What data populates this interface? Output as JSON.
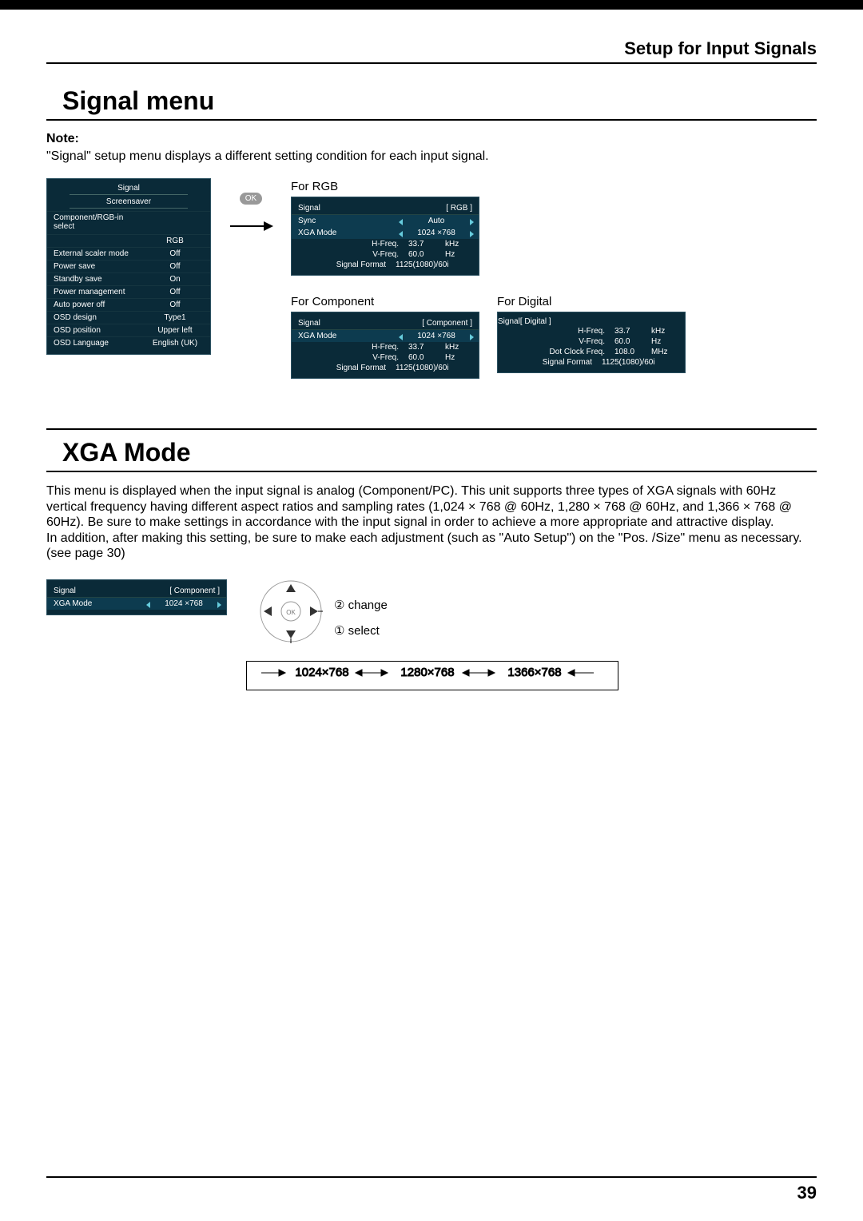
{
  "header": {
    "section": "Setup for Input Signals"
  },
  "title1": "Signal menu",
  "note": {
    "label": "Note:",
    "text": "\"Signal\" setup menu displays a different setting condition for each input signal."
  },
  "mainPanel": {
    "title": "Signal",
    "sub": "Screensaver",
    "rows": [
      {
        "lab": "Component/RGB-in select",
        "val": ""
      },
      {
        "lab": "",
        "val": "RGB"
      },
      {
        "lab": "External scaler mode",
        "val": "Off"
      },
      {
        "lab": "Power save",
        "val": "Off"
      },
      {
        "lab": "Standby save",
        "val": "On"
      },
      {
        "lab": "Power management",
        "val": "Off"
      },
      {
        "lab": "Auto power off",
        "val": "Off"
      },
      {
        "lab": "OSD design",
        "val": "Type1"
      },
      {
        "lab": "OSD position",
        "val": "Upper left"
      },
      {
        "lab": "OSD Language",
        "val": "English (UK)"
      }
    ]
  },
  "ok": "OK",
  "rgb": {
    "caption": "For RGB",
    "head": "Signal",
    "tag": "[ RGB ]",
    "sel": [
      {
        "lab": "Sync",
        "val": "Auto"
      },
      {
        "lab": "XGA Mode",
        "val": "1024 ×768"
      }
    ],
    "info": [
      {
        "k": "H-Freq.",
        "v": "33.7",
        "u": "kHz"
      },
      {
        "k": "V-Freq.",
        "v": "60.0",
        "u": "Hz"
      },
      {
        "k": "Signal Format",
        "v": "1125(1080)/60i",
        "u": ""
      }
    ]
  },
  "component": {
    "caption": "For Component",
    "head": "Signal",
    "tag": "[ Component ]",
    "sel": [
      {
        "lab": "XGA Mode",
        "val": "1024 ×768"
      }
    ],
    "info": [
      {
        "k": "H-Freq.",
        "v": "33.7",
        "u": "kHz"
      },
      {
        "k": "V-Freq.",
        "v": "60.0",
        "u": "Hz"
      },
      {
        "k": "Signal Format",
        "v": "1125(1080)/60i",
        "u": ""
      }
    ]
  },
  "digital": {
    "caption": "For Digital",
    "head": "Signal",
    "tag": "[ Digital ]",
    "info": [
      {
        "k": "H-Freq.",
        "v": "33.7",
        "u": "kHz"
      },
      {
        "k": "V-Freq.",
        "v": "60.0",
        "u": "Hz"
      },
      {
        "k": "Dot Clock Freq.",
        "v": "108.0",
        "u": "MHz"
      },
      {
        "k": "Signal Format",
        "v": "1125(1080)/60i",
        "u": ""
      }
    ]
  },
  "title2": "XGA Mode",
  "para": "This menu is displayed when the input signal is analog (Component/PC). This unit supports three types of XGA signals with 60Hz vertical frequency having different aspect ratios and sampling rates (1,024 × 768 @ 60Hz, 1,280 × 768 @ 60Hz, and 1,366 × 768 @ 60Hz). Be sure to make settings in accordance with the input signal in order to achieve a more appropriate and attractive display.\nIn addition, after making this setting, be sure to make each adjustment (such as \"Auto Setup\") on the \"Pos. /Size\" menu as necessary. (see page 30)",
  "xgaPanel": {
    "head": "Signal",
    "tag": "[ Component ]",
    "sel": [
      {
        "lab": "XGA Mode",
        "val": "1024 ×768"
      }
    ]
  },
  "dpad": {
    "change": "change",
    "select": "select",
    "n2": "②",
    "n1": "①"
  },
  "cycle": {
    "a": "1024×768",
    "b": "1280×768",
    "c": "1366×768"
  },
  "pageNumber": "39"
}
